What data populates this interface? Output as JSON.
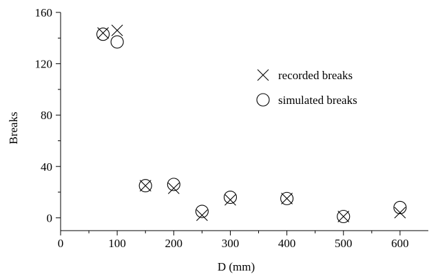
{
  "chart_data": {
    "type": "scatter",
    "title": "",
    "xlabel": "D (mm)",
    "ylabel": "Breaks",
    "xlim": [
      0,
      650
    ],
    "ylim": [
      -10,
      160
    ],
    "xticks": [
      0,
      100,
      200,
      300,
      400,
      500,
      600
    ],
    "yticks": [
      0,
      40,
      80,
      120,
      160
    ],
    "grid": false,
    "legend_position": "upper-right",
    "series": [
      {
        "name": "recorded breaks",
        "marker": "x",
        "x": [
          75,
          100,
          150,
          200,
          250,
          300,
          400,
          500,
          600
        ],
        "y": [
          144,
          146,
          25,
          23,
          2,
          14,
          15,
          1,
          4
        ]
      },
      {
        "name": "simulated breaks",
        "marker": "circle",
        "x": [
          75,
          100,
          150,
          200,
          250,
          300,
          400,
          500,
          600
        ],
        "y": [
          143,
          137,
          25,
          26,
          5,
          16,
          15,
          1,
          8
        ]
      }
    ]
  }
}
